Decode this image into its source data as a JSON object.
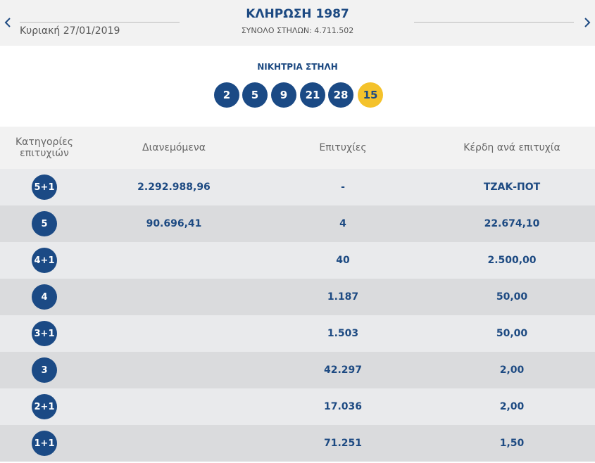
{
  "header": {
    "date": "Κυριακή 27/01/2019",
    "title": "ΚΛΗΡΩΣΗ 1987",
    "subtitle": "ΣΥΝΟΛΟ ΣΤΗΛΩΝ: 4.711.502"
  },
  "winning": {
    "label": "ΝΙΚΗΤΡΙΑ ΣΤΗΛΗ",
    "numbers": [
      "2",
      "5",
      "9",
      "21",
      "28"
    ],
    "bonus": "15"
  },
  "table": {
    "columns": [
      "Κατηγορίες επιτυχιών",
      "Διανεμόμενα",
      "Επιτυχίες",
      "Κέρδη ανά επιτυχία"
    ],
    "rows": [
      {
        "category": "5+1",
        "distributed": "2.292.988,96",
        "winners": "-",
        "prize": "ΤΖΑΚ-ΠΟΤ"
      },
      {
        "category": "5",
        "distributed": "90.696,41",
        "winners": "4",
        "prize": "22.674,10"
      },
      {
        "category": "4+1",
        "winners": "40",
        "prize": "2.500,00"
      },
      {
        "category": "4",
        "winners": "1.187",
        "prize": "50,00"
      },
      {
        "category": "3+1",
        "winners": "1.503",
        "prize": "50,00"
      },
      {
        "category": "3",
        "winners": "42.297",
        "prize": "2,00"
      },
      {
        "category": "2+1",
        "winners": "17.036",
        "prize": "2,00"
      },
      {
        "category": "1+1",
        "winners": "71.251",
        "prize": "1,50"
      }
    ]
  }
}
